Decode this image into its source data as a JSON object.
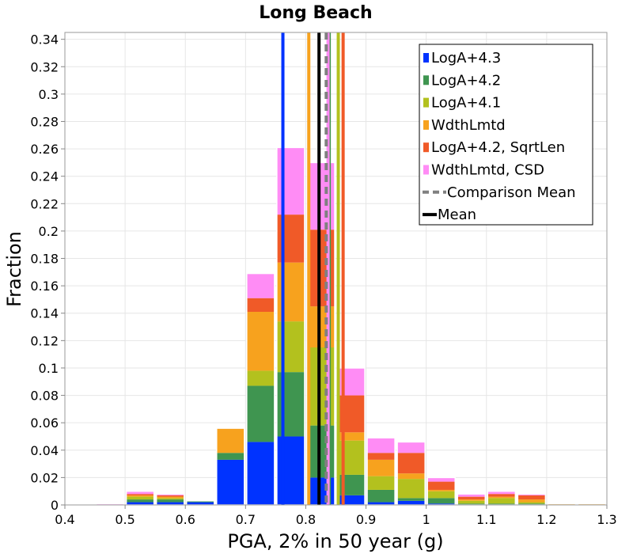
{
  "chart_data": {
    "type": "bar",
    "stacked": true,
    "title": "Long Beach",
    "xlabel": "PGA, 2% in 50 year (g)",
    "ylabel": "Fraction",
    "xlim": [
      0.4,
      1.3
    ],
    "ylim": [
      0,
      0.345
    ],
    "grid": true,
    "legend_position": "top-right",
    "x_ticks": [
      "0.4",
      "0.5",
      "0.6",
      "0.7",
      "0.8",
      "0.9",
      "1",
      "1.1",
      "1.2",
      "1.3"
    ],
    "y_ticks": [
      "0",
      "0.02",
      "0.04",
      "0.06",
      "0.08",
      "0.1",
      "0.12",
      "0.14",
      "0.16",
      "0.18",
      "0.2",
      "0.22",
      "0.24",
      "0.26",
      "0.28",
      "0.3",
      "0.32",
      "0.34"
    ],
    "bin_width": 0.05,
    "bin_centers": [
      0.475,
      0.525,
      0.575,
      0.625,
      0.675,
      0.725,
      0.775,
      0.825,
      0.875,
      0.925,
      0.975,
      1.025,
      1.075,
      1.125,
      1.175,
      1.225,
      1.275
    ],
    "series": [
      {
        "name": "LogA+4.3",
        "color": "#0033ff",
        "values": [
          0,
          0.002,
          0.002,
          0.002,
          0.033,
          0.046,
          0.05,
          0.02,
          0.007,
          0.002,
          0.003,
          0.001,
          0,
          0,
          0,
          0,
          0
        ]
      },
      {
        "name": "LogA+4.2",
        "color": "#3f9550",
        "values": [
          0,
          0.002,
          0.002,
          0.001,
          0.005,
          0.041,
          0.047,
          0.038,
          0.015,
          0.009,
          0.002,
          0.004,
          0.001,
          0.001,
          0.001,
          0,
          0
        ]
      },
      {
        "name": "LogA+4.1",
        "color": "#b3c11e",
        "values": [
          0,
          0.002,
          0.001,
          0,
          0,
          0.011,
          0.037,
          0.057,
          0.025,
          0.01,
          0.014,
          0.005,
          0.002,
          0.004,
          0.001,
          0,
          0
        ]
      },
      {
        "name": "WdthLmtd",
        "color": "#f7a21e",
        "values": [
          0,
          0.001,
          0.001,
          0,
          0.018,
          0.043,
          0.043,
          0.03,
          0.006,
          0.012,
          0.004,
          0.001,
          0.001,
          0.001,
          0.002,
          0.001,
          0.001
        ]
      },
      {
        "name": "LogA+4.2, SqrtLen",
        "color": "#f05a28",
        "values": [
          0,
          0.001,
          0.001,
          0,
          0,
          0.01,
          0.035,
          0.056,
          0.027,
          0.005,
          0.015,
          0.006,
          0.002,
          0.002,
          0.003,
          0,
          0
        ]
      },
      {
        "name": "WdthLmtd, CSD",
        "color": "#ff8cf5",
        "values": [
          0.001,
          0.002,
          0.001,
          0,
          0,
          0.018,
          0.049,
          0.049,
          0.02,
          0.011,
          0.008,
          0.003,
          0.002,
          0.002,
          0.001,
          0,
          0
        ]
      }
    ],
    "mean_lines": [
      {
        "series": "LogA+4.3",
        "x": 0.762
      },
      {
        "series": "LogA+4.2",
        "x": 0.839
      },
      {
        "series": "LogA+4.1",
        "x": 0.854
      },
      {
        "series": "WdthLmtd",
        "x": 0.805
      },
      {
        "series": "LogA+4.2, SqrtLen",
        "x": 0.862
      },
      {
        "series": "WdthLmtd, CSD",
        "x": 0.837
      }
    ],
    "comparison_mean": {
      "label": "Comparison Mean",
      "x": 0.834,
      "color": "#808080"
    },
    "mean": {
      "label": "Mean",
      "x": 0.822,
      "color": "#000000"
    }
  }
}
